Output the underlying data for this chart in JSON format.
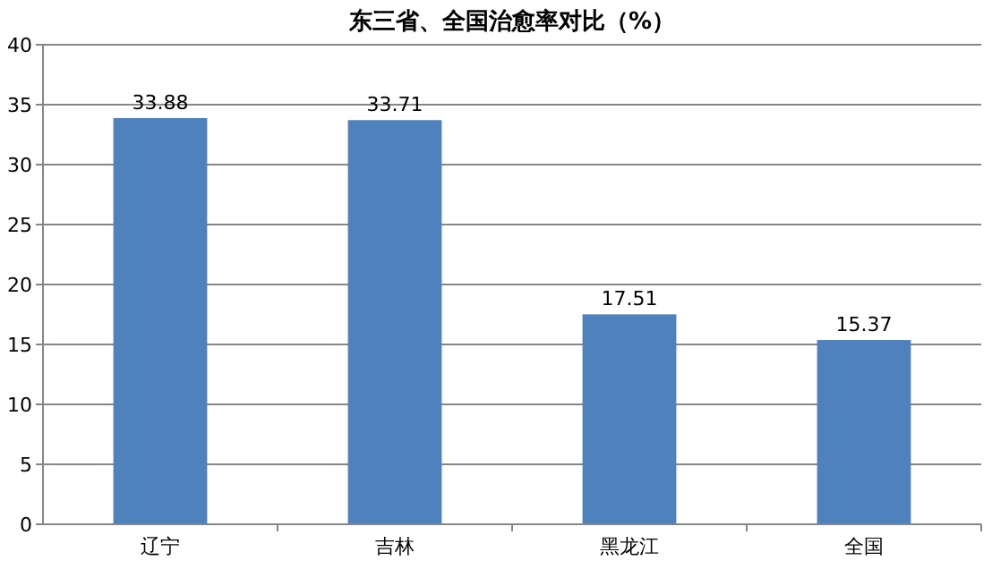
{
  "chart_data": {
    "type": "bar",
    "title": "东三省、全国治愈率对比（%）",
    "categories": [
      "辽宁",
      "吉林",
      "黑龙江",
      "全国"
    ],
    "values": [
      33.88,
      33.71,
      17.51,
      15.37
    ],
    "color": "#4f81bd",
    "ylim": [
      0,
      40
    ],
    "yticks": [
      0,
      5,
      10,
      15,
      20,
      25,
      30,
      35,
      40
    ],
    "grid": "y",
    "data_labels": true
  }
}
